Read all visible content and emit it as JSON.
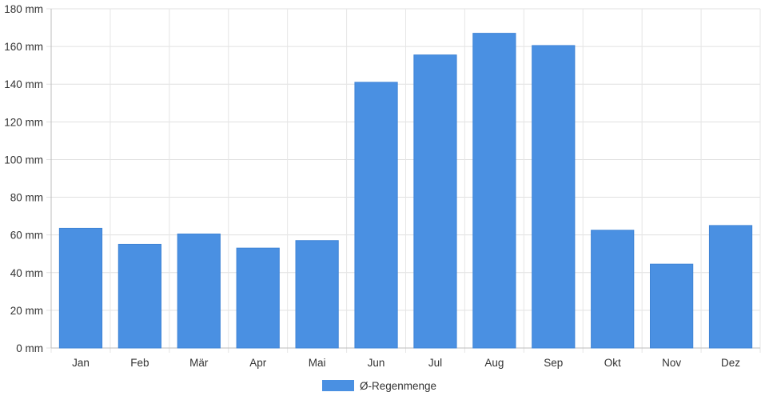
{
  "chart_data": {
    "type": "bar",
    "categories": [
      "Jan",
      "Feb",
      "Mär",
      "Apr",
      "Mai",
      "Jun",
      "Jul",
      "Aug",
      "Sep",
      "Okt",
      "Nov",
      "Dez"
    ],
    "series": [
      {
        "name": "Ø-Regenmenge",
        "values": [
          63.5,
          55,
          60.5,
          53,
          57,
          141,
          155.5,
          167,
          160.5,
          62.5,
          44.5,
          65
        ],
        "color": "#4a90e2"
      }
    ],
    "ylim": [
      0,
      180
    ],
    "yticks": [
      0,
      20,
      40,
      60,
      80,
      100,
      120,
      140,
      160,
      180
    ],
    "y_unit": "mm",
    "grid": true,
    "legend_position": "bottom-center"
  }
}
